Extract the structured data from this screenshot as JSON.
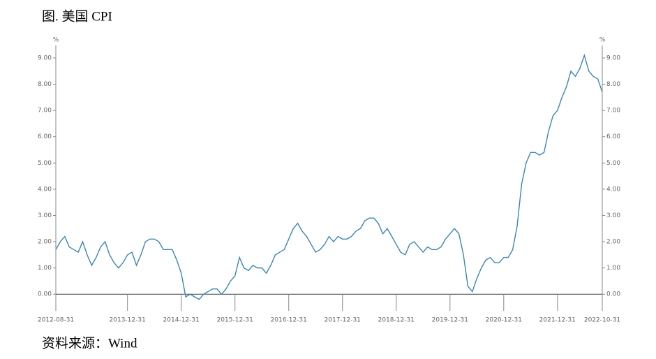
{
  "chart_data": {
    "type": "line",
    "title": "图. 美国 CPI",
    "source": "资料来源：Wind",
    "y_unit": "%",
    "categories": [
      "2012-08-31",
      null,
      null,
      null,
      null,
      null,
      null,
      null,
      null,
      null,
      null,
      null,
      null,
      null,
      null,
      null,
      "2013-12-31",
      null,
      null,
      null,
      null,
      null,
      null,
      null,
      null,
      null,
      null,
      null,
      "2014-12-31",
      null,
      null,
      null,
      null,
      null,
      null,
      null,
      null,
      null,
      null,
      null,
      "2015-12-31",
      null,
      null,
      null,
      null,
      null,
      null,
      null,
      null,
      null,
      null,
      null,
      "2016-12-31",
      null,
      null,
      null,
      null,
      null,
      null,
      null,
      null,
      null,
      null,
      null,
      "2017-12-31",
      null,
      null,
      null,
      null,
      null,
      null,
      null,
      null,
      null,
      null,
      null,
      "2018-12-31",
      null,
      null,
      null,
      null,
      null,
      null,
      null,
      null,
      null,
      null,
      null,
      "2019-12-31",
      null,
      null,
      null,
      null,
      null,
      null,
      null,
      null,
      null,
      null,
      null,
      "2020-12-31",
      null,
      null,
      null,
      null,
      null,
      null,
      null,
      null,
      null,
      null,
      null,
      "2021-12-31",
      null,
      null,
      null,
      null,
      null,
      null,
      null,
      null,
      null,
      "2022-10-31"
    ],
    "series": [
      {
        "name": "美国 CPI",
        "color": "#3b86b4",
        "values": [
          1.7,
          2.0,
          2.2,
          1.8,
          1.7,
          1.6,
          2.0,
          1.5,
          1.1,
          1.4,
          1.8,
          2.0,
          1.5,
          1.2,
          1.0,
          1.2,
          1.5,
          1.6,
          1.1,
          1.5,
          2.0,
          2.1,
          2.1,
          2.0,
          1.7,
          1.7,
          1.7,
          1.3,
          0.8,
          -0.1,
          0.0,
          -0.1,
          -0.2,
          0.0,
          0.1,
          0.2,
          0.2,
          0.0,
          0.2,
          0.5,
          0.7,
          1.4,
          1.0,
          0.9,
          1.1,
          1.0,
          1.0,
          0.8,
          1.1,
          1.5,
          1.6,
          1.7,
          2.1,
          2.5,
          2.7,
          2.4,
          2.2,
          1.9,
          1.6,
          1.7,
          1.9,
          2.2,
          2.0,
          2.2,
          2.1,
          2.1,
          2.2,
          2.4,
          2.5,
          2.8,
          2.9,
          2.9,
          2.7,
          2.3,
          2.5,
          2.2,
          1.9,
          1.6,
          1.5,
          1.9,
          2.0,
          1.8,
          1.6,
          1.8,
          1.7,
          1.7,
          1.8,
          2.1,
          2.3,
          2.5,
          2.3,
          1.5,
          0.3,
          0.1,
          0.6,
          1.0,
          1.3,
          1.4,
          1.2,
          1.2,
          1.4,
          1.4,
          1.7,
          2.6,
          4.2,
          5.0,
          5.4,
          5.4,
          5.3,
          5.4,
          6.2,
          6.8,
          7.0,
          7.5,
          7.9,
          8.5,
          8.3,
          8.6,
          9.1,
          8.5,
          8.3,
          8.2,
          7.7
        ]
      }
    ],
    "ylim": [
      -0.5,
      9.5
    ],
    "yticks": [
      {
        "value": 0,
        "label": "0.00"
      },
      {
        "value": 1,
        "label": "1.00"
      },
      {
        "value": 2,
        "label": "2.00"
      },
      {
        "value": 3,
        "label": "3.00"
      },
      {
        "value": 4,
        "label": "4.00"
      },
      {
        "value": 5,
        "label": "5.00"
      },
      {
        "value": 6,
        "label": "6.00"
      },
      {
        "value": 7,
        "label": "7.00"
      },
      {
        "value": 8,
        "label": "8.00"
      },
      {
        "value": 9,
        "label": "9.00"
      }
    ],
    "y2lim": [
      -0.5,
      9.5
    ],
    "y2ticks": [
      {
        "value": 0,
        "label": "0.00"
      },
      {
        "value": 1,
        "label": "1.00"
      },
      {
        "value": 2,
        "label": "2.00"
      },
      {
        "value": 3,
        "label": "3.00"
      },
      {
        "value": 4,
        "label": "4.00"
      },
      {
        "value": 5,
        "label": "5.00"
      },
      {
        "value": 6,
        "label": "6.00"
      },
      {
        "value": 7,
        "label": "7.00"
      },
      {
        "value": 8,
        "label": "8.00"
      },
      {
        "value": 9,
        "label": "9.00"
      }
    ]
  }
}
